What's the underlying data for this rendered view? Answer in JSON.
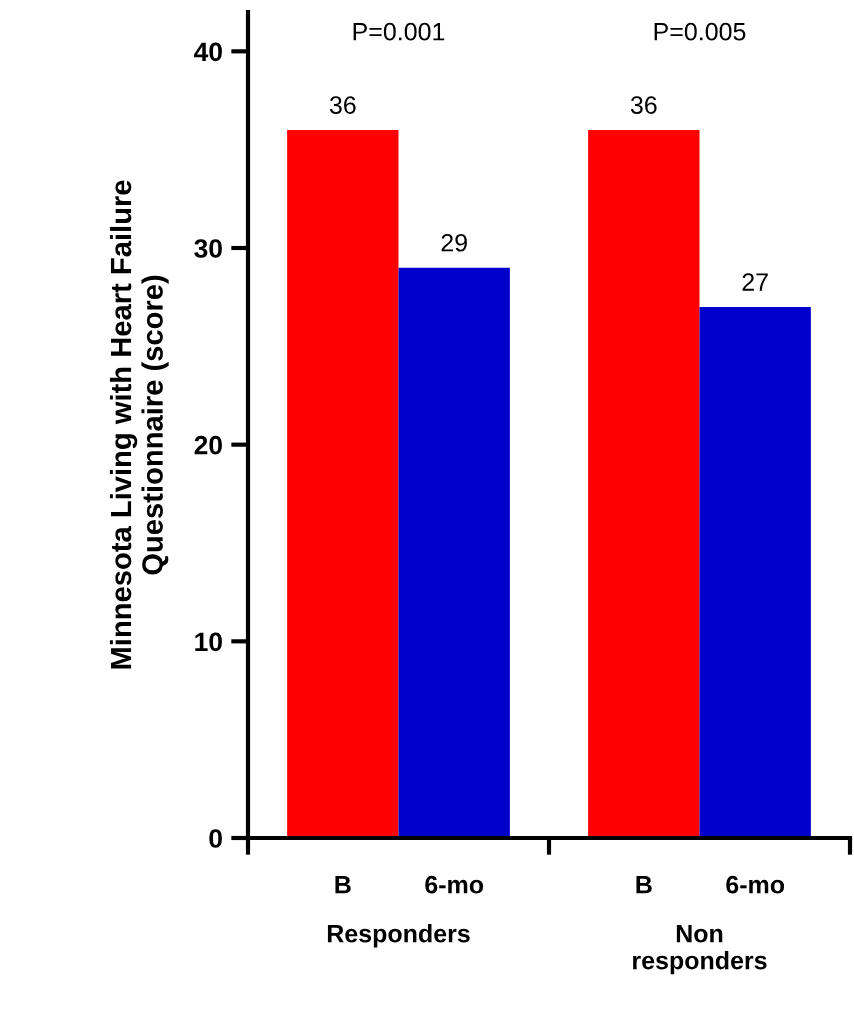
{
  "chart_data": {
    "type": "bar",
    "ylabel": "Minnesota Living with Heart Failure\nQuestionnaire (score)",
    "categories": [
      "Responders",
      "Non\nresponders"
    ],
    "series": [
      {
        "name": "B",
        "color": "#ff0000",
        "values": [
          36,
          36
        ]
      },
      {
        "name": "6-mo",
        "color": "#0000cc",
        "values": [
          29,
          27
        ]
      }
    ],
    "data_labels": true,
    "annotations": [
      "P=0.001",
      "P=0.005"
    ],
    "ylim": [
      0,
      42
    ],
    "yticks": [
      0,
      10,
      20,
      30,
      40
    ],
    "grid": false,
    "legend": false
  }
}
